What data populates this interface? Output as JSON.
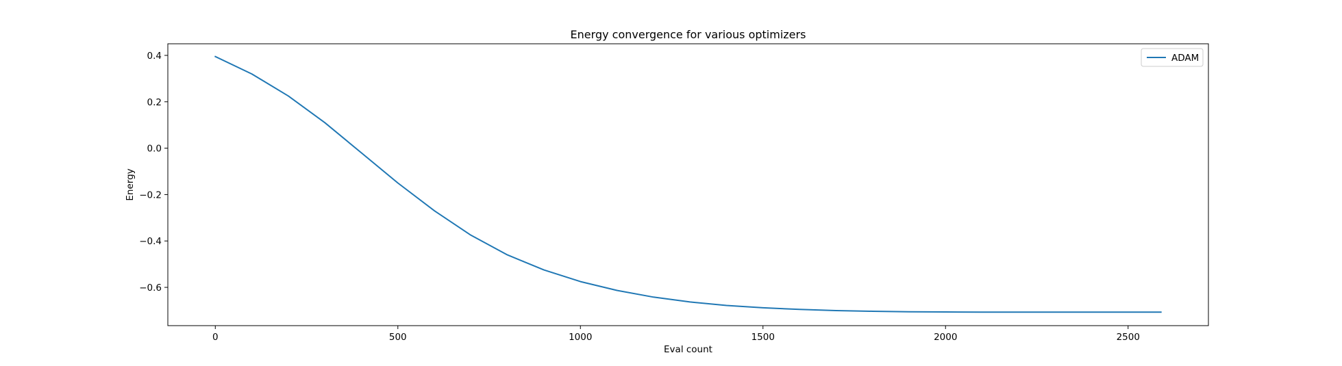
{
  "chart_data": {
    "type": "line",
    "title": "Energy convergence for various optimizers",
    "xlabel": "Eval count",
    "ylabel": "Energy",
    "xlim": [
      -130,
      2720
    ],
    "ylim": [
      -0.765,
      0.45
    ],
    "xticks": [
      0,
      500,
      1000,
      1500,
      2000,
      2500
    ],
    "xtick_labels": [
      "0",
      "500",
      "1000",
      "1500",
      "2000",
      "2500"
    ],
    "yticks": [
      0.4,
      0.2,
      0.0,
      -0.2,
      -0.4,
      -0.6
    ],
    "ytick_labels": [
      "0.4",
      "0.2",
      "0.0",
      "−0.2",
      "−0.4",
      "−0.6"
    ],
    "grid": false,
    "legend_position": "upper right",
    "series": [
      {
        "name": "ADAM",
        "color": "#1f77b4",
        "x": [
          0,
          100,
          200,
          300,
          400,
          500,
          600,
          700,
          800,
          900,
          1000,
          1100,
          1200,
          1300,
          1400,
          1500,
          1600,
          1700,
          1800,
          1900,
          2000,
          2100,
          2200,
          2300,
          2400,
          2500,
          2590
        ],
        "y": [
          0.395,
          0.32,
          0.225,
          0.11,
          -0.02,
          -0.15,
          -0.27,
          -0.375,
          -0.46,
          -0.525,
          -0.575,
          -0.613,
          -0.642,
          -0.663,
          -0.678,
          -0.688,
          -0.695,
          -0.7,
          -0.703,
          -0.705,
          -0.706,
          -0.7065,
          -0.707,
          -0.707,
          -0.707,
          -0.707,
          -0.707
        ]
      }
    ]
  }
}
